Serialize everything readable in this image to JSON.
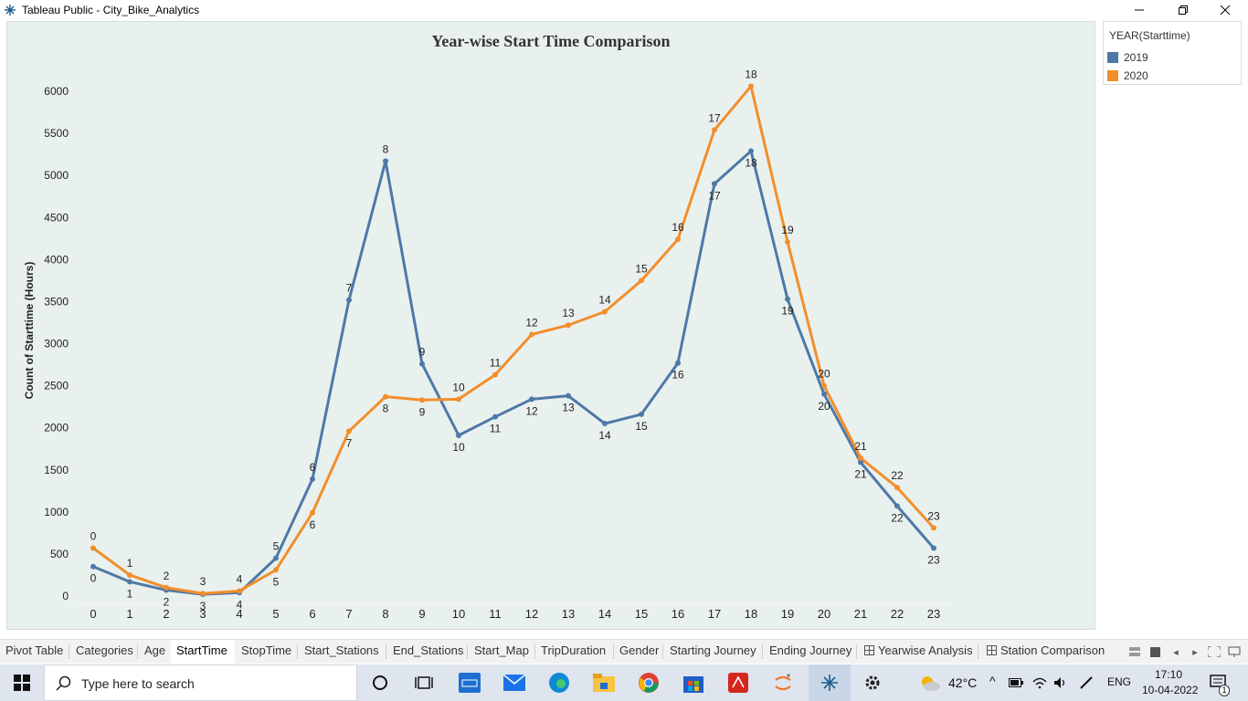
{
  "window": {
    "title": "Tableau Public - City_Bike_Analytics"
  },
  "legend": {
    "title": "YEAR(Starttime)",
    "items": [
      {
        "label": "2019",
        "color": "#4e79a7"
      },
      {
        "label": "2020",
        "color": "#f28e2b"
      }
    ]
  },
  "chart_data": {
    "type": "line",
    "title": "Year-wise Start Time Comparison",
    "xlabel": "",
    "ylabel": "Count of Starttime (Hours)",
    "x": [
      0,
      1,
      2,
      3,
      4,
      5,
      6,
      7,
      8,
      9,
      10,
      11,
      12,
      13,
      14,
      15,
      16,
      17,
      18,
      19,
      20,
      21,
      22,
      23
    ],
    "ylim": [
      0,
      6300
    ],
    "yticks": [
      0,
      500,
      1000,
      1500,
      2000,
      2500,
      3000,
      3500,
      4000,
      4500,
      5000,
      5500,
      6000
    ],
    "grid": false,
    "legend": "right",
    "series": [
      {
        "name": "2019",
        "color": "#4e79a7",
        "values": [
          350,
          170,
          70,
          20,
          40,
          450,
          1390,
          3520,
          5170,
          2760,
          1910,
          2130,
          2340,
          2380,
          2050,
          2160,
          2770,
          4900,
          5290,
          3530,
          2400,
          1590,
          1070,
          570
        ]
      },
      {
        "name": "2020",
        "color": "#f28e2b",
        "values": [
          570,
          250,
          100,
          30,
          60,
          310,
          990,
          1960,
          2370,
          2330,
          2340,
          2630,
          3110,
          3220,
          3380,
          3750,
          4240,
          5540,
          6060,
          4210,
          2500,
          1640,
          1290,
          810
        ]
      }
    ]
  },
  "tabs": [
    {
      "label": "Pivot Table"
    },
    {
      "label": "Categories"
    },
    {
      "label": "Age"
    },
    {
      "label": "StartTime",
      "active": true
    },
    {
      "label": "StopTime"
    },
    {
      "label": "Start_Stations"
    },
    {
      "label": "End_Stations"
    },
    {
      "label": "Start_Map"
    },
    {
      "label": "TripDuration"
    },
    {
      "label": "Gender"
    },
    {
      "label": "Starting Journey"
    },
    {
      "label": "Ending Journey"
    },
    {
      "label": "Yearwise Analysis",
      "icon": "dashboard-icon"
    },
    {
      "label": "Station Comparison",
      "icon": "dashboard-icon"
    }
  ],
  "taskbar": {
    "search_placeholder": "Type here to search",
    "temperature": "42°C",
    "language": "ENG",
    "time": "17:10",
    "date": "10-04-2022",
    "notification_count": "1"
  }
}
